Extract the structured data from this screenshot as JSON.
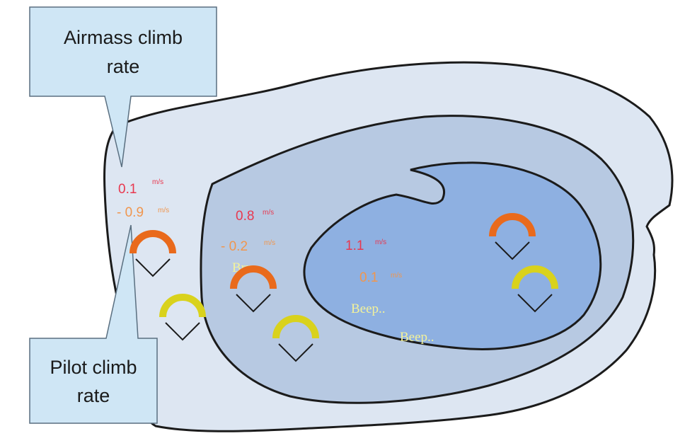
{
  "colors": {
    "airmass": "#e8384f",
    "pilot": "#f0964e",
    "sound": "#f3f29a",
    "glider_orange": "#e96a1c",
    "glider_yellow": "#d9d21c",
    "zone_outer": "#dde6f2",
    "zone_middle": "#b7c9e2",
    "zone_inner": "#8eb0e1",
    "callout": "#cfe6f5"
  },
  "callouts": {
    "airmass": {
      "line1": "Airmass climb",
      "line2": "rate"
    },
    "pilot": {
      "line1": "Pilot climb",
      "line2": "rate"
    }
  },
  "zones": {
    "outer": {
      "airmass_value": "0.1",
      "airmass_unit": "m/s",
      "pilot_value": "- 0.9",
      "pilot_unit": "m/s"
    },
    "middle": {
      "airmass_value": "0.8",
      "airmass_unit": "m/s",
      "pilot_value": "- 0.2",
      "pilot_unit": "m/s",
      "sound": "Brrr.."
    },
    "inner": {
      "airmass_value": "1.1",
      "airmass_unit": "m/s",
      "pilot_value": "0.1",
      "pilot_unit": "m/s",
      "sound1": "Beep..",
      "sound2": "Beep.."
    }
  },
  "gliders": [
    {
      "wing": "orange",
      "zone": "outer"
    },
    {
      "wing": "yellow",
      "zone": "outer"
    },
    {
      "wing": "orange",
      "zone": "middle"
    },
    {
      "wing": "yellow",
      "zone": "middle"
    },
    {
      "wing": "orange",
      "zone": "inner"
    },
    {
      "wing": "yellow",
      "zone": "inner"
    }
  ]
}
